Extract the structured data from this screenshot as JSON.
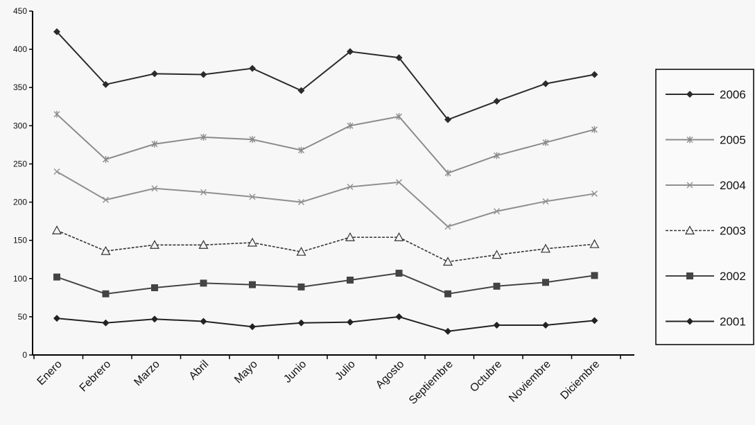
{
  "chart_data": {
    "type": "line",
    "title": "",
    "xlabel": "",
    "ylabel": "",
    "categories": [
      "Enero",
      "Febrero",
      "Marzo",
      "Abril",
      "Mayo",
      "Junio",
      "Julio",
      "Agosto",
      "Septiembre",
      "Octubre",
      "Noviembre",
      "Diciembre"
    ],
    "ylim": [
      0,
      450
    ],
    "yticks": [
      0,
      50,
      100,
      150,
      200,
      250,
      300,
      350,
      400,
      450
    ],
    "grid": false,
    "legend_position": "right",
    "series": [
      {
        "name": "2006",
        "marker": "diamond",
        "dash": "solid",
        "color": "#2b2b2b",
        "values": [
          423,
          354,
          368,
          367,
          375,
          346,
          397,
          389,
          308,
          332,
          355,
          367
        ]
      },
      {
        "name": "2005",
        "marker": "star",
        "dash": "solid",
        "color": "#8a8a8a",
        "values": [
          315,
          256,
          276,
          285,
          282,
          268,
          300,
          312,
          238,
          261,
          278,
          295
        ]
      },
      {
        "name": "2004",
        "marker": "x",
        "dash": "solid",
        "color": "#8f8f8f",
        "values": [
          240,
          203,
          218,
          213,
          207,
          200,
          220,
          226,
          168,
          188,
          201,
          211
        ]
      },
      {
        "name": "2003",
        "marker": "triangle",
        "dash": "dashed",
        "color": "#333333",
        "values": [
          163,
          136,
          144,
          144,
          147,
          135,
          154,
          154,
          122,
          131,
          139,
          145
        ]
      },
      {
        "name": "2002",
        "marker": "square",
        "dash": "solid",
        "color": "#444444",
        "values": [
          102,
          80,
          88,
          94,
          92,
          89,
          98,
          107,
          80,
          90,
          95,
          104
        ]
      },
      {
        "name": "2001",
        "marker": "diamond",
        "dash": "solid",
        "color": "#222222",
        "values": [
          48,
          42,
          47,
          44,
          37,
          42,
          43,
          50,
          31,
          39,
          39,
          45
        ]
      }
    ]
  }
}
